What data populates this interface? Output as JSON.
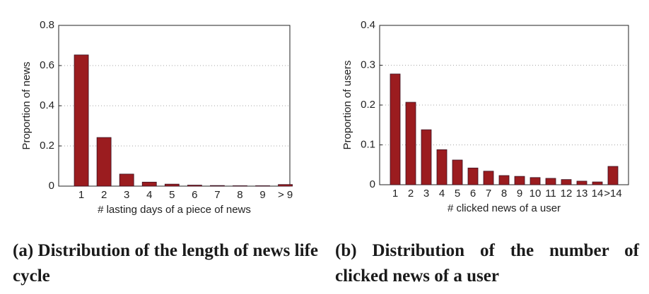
{
  "chart_data": [
    {
      "type": "bar",
      "caption": "(a) Distribution of the length of news life cycle",
      "xlabel": "# lasting days of a piece of news",
      "ylabel": "Proportion of news",
      "categories": [
        "1",
        "2",
        "3",
        "4",
        "5",
        "6",
        "7",
        "8",
        "9",
        "> 9"
      ],
      "values": [
        0.653,
        0.242,
        0.06,
        0.02,
        0.01,
        0.005,
        0.003,
        0.002,
        0.002,
        0.008
      ],
      "color": "#9b1c1f",
      "ylim": [
        0,
        0.8
      ],
      "yticks": [
        0,
        0.2,
        0.4,
        0.6,
        0.8
      ],
      "grid": true
    },
    {
      "type": "bar",
      "caption": "(b) Distribution of the number of clicked news of a user",
      "xlabel": "# clicked news of a user",
      "ylabel": "Proportion of users",
      "categories": [
        "1",
        "2",
        "3",
        "4",
        "5",
        "6",
        "7",
        "8",
        "9",
        "10",
        "11",
        "12",
        "13",
        "14",
        ">14"
      ],
      "values": [
        0.278,
        0.207,
        0.138,
        0.088,
        0.062,
        0.042,
        0.034,
        0.023,
        0.021,
        0.018,
        0.016,
        0.013,
        0.009,
        0.007,
        0.046
      ],
      "color": "#9b1c1f",
      "ylim": [
        0,
        0.4
      ],
      "yticks": [
        0,
        0.1,
        0.2,
        0.3,
        0.4
      ],
      "grid": true
    }
  ]
}
